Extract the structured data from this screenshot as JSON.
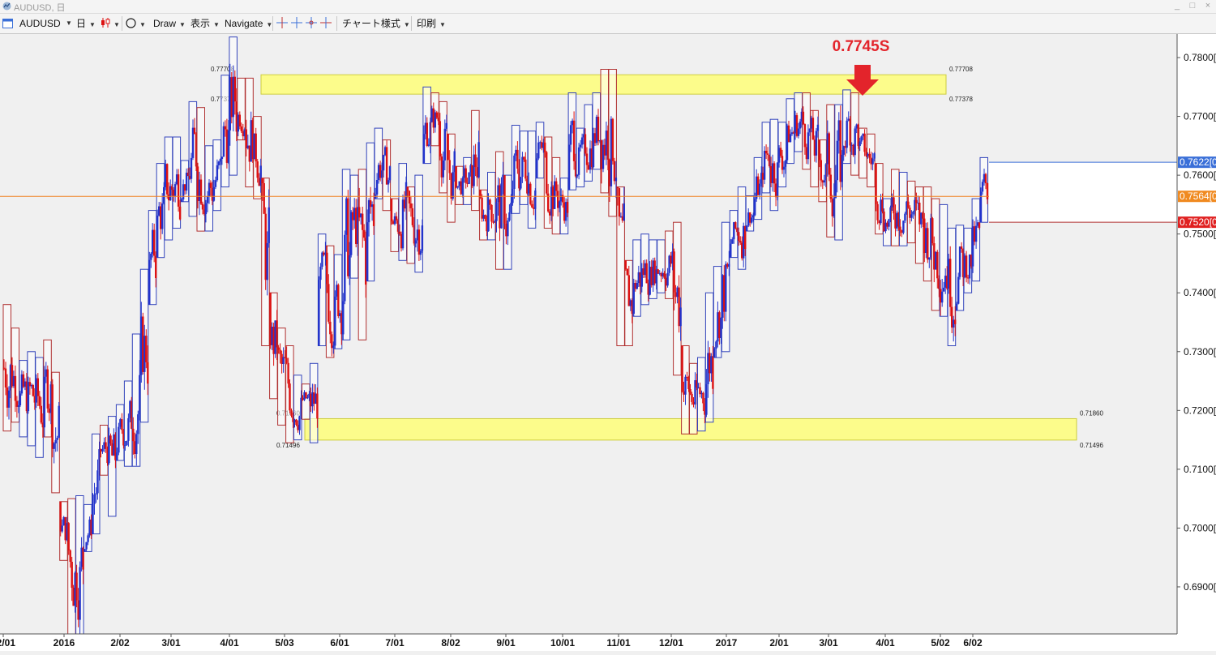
{
  "window": {
    "title": "AUDUSD, 日",
    "minimize": "_",
    "maximize": "□",
    "close": "×"
  },
  "toolbar": {
    "symbol": "AUDUSD",
    "timeframe": "日",
    "draw": "Draw",
    "view": "表示",
    "navigate": "Navigate",
    "chart_style": "チャート様式",
    "print": "印刷"
  },
  "colors": {
    "bull": "#2233cc",
    "bear": "#dd1111",
    "box_up": "#3344bb",
    "box_down": "#b03030",
    "zone_fill": "#ffff7a",
    "zone_border": "#c8c820",
    "current_line": "#f08020",
    "annotation": "#e3242b",
    "grid_bg": "#f0f0f0"
  },
  "annotation": {
    "text": "0.7745S",
    "arrow": "down-arrow-icon"
  },
  "zones": [
    {
      "name": "resistance",
      "upper": 0.77708,
      "lower": 0.77378,
      "upper_label": "0.77708",
      "lower_label": "0.77378"
    },
    {
      "name": "support",
      "upper": 0.7186,
      "lower": 0.71496,
      "upper_label": "0.71860",
      "lower_label": "0.71496"
    }
  ],
  "price_tags": [
    {
      "value": 0.7622,
      "text": "0.7622[0]",
      "color": "#3a6fd8"
    },
    {
      "value": 0.7564,
      "text": "0.7564[0]",
      "color": "#f08a20"
    },
    {
      "value": 0.752,
      "text": "0.7520[0]",
      "color": "#e02020"
    }
  ],
  "chart_data": {
    "type": "candlestick",
    "symbol": "AUDUSD",
    "timeframe": "日",
    "y_axis": {
      "min": 0.682,
      "max": 0.784,
      "ticks": [
        "0.7800[0]",
        "0.7700[0]",
        "0.7600[0]",
        "0.7500[0]",
        "0.7400[0]",
        "0.7300[0]",
        "0.7200[0]",
        "0.7100[0]",
        "0.7000[0]",
        "0.6900[0]"
      ],
      "tick_values": [
        0.78,
        0.77,
        0.76,
        0.75,
        0.74,
        0.73,
        0.72,
        0.71,
        0.7,
        0.69
      ]
    },
    "x_axis": {
      "labels": [
        "12/01",
        "2016",
        "2/02",
        "3/01",
        "4/01",
        "5/03",
        "6/01",
        "7/01",
        "8/02",
        "9/01",
        "10/01",
        "11/01",
        "12/01",
        "2017",
        "2/01",
        "3/01",
        "4/01",
        "5/02",
        "6/02"
      ]
    },
    "current_price": 0.7564,
    "weekly_boxes": [
      [
        0.738,
        0.7165
      ],
      [
        0.734,
        0.718
      ],
      [
        0.7285,
        0.7155
      ],
      [
        0.73,
        0.714
      ],
      [
        0.729,
        0.712
      ],
      [
        0.732,
        0.7155
      ],
      [
        0.7265,
        0.706
      ],
      [
        0.7045,
        0.6945
      ],
      [
        0.705,
        0.6815
      ],
      [
        0.7055,
        0.682
      ],
      [
        0.704,
        0.696
      ],
      [
        0.716,
        0.699
      ],
      [
        0.7175,
        0.709
      ],
      [
        0.719,
        0.702
      ],
      [
        0.721,
        0.7115
      ],
      [
        0.725,
        0.7105
      ],
      [
        0.733,
        0.7105
      ],
      [
        0.744,
        0.718
      ],
      [
        0.754,
        0.738
      ],
      [
        0.762,
        0.746
      ],
      [
        0.7665,
        0.749
      ],
      [
        0.7665,
        0.751
      ],
      [
        0.7625,
        0.7555
      ],
      [
        0.7725,
        0.753
      ],
      [
        0.7715,
        0.7505
      ],
      [
        0.765,
        0.7505
      ],
      [
        0.766,
        0.754
      ],
      [
        0.777,
        0.758
      ],
      [
        0.7835,
        0.76
      ],
      [
        0.7765,
        0.766
      ],
      [
        0.7765,
        0.758
      ],
      [
        0.77,
        0.756
      ],
      [
        0.7595,
        0.731
      ],
      [
        0.74,
        0.722
      ],
      [
        0.734,
        0.7175
      ],
      [
        0.731,
        0.7145
      ],
      [
        0.726,
        0.715
      ],
      [
        0.7245,
        0.7185
      ],
      [
        0.728,
        0.7145
      ],
      [
        0.75,
        0.731
      ],
      [
        0.748,
        0.729
      ],
      [
        0.7465,
        0.7305
      ],
      [
        0.761,
        0.732
      ],
      [
        0.76,
        0.7425
      ],
      [
        0.761,
        0.732
      ],
      [
        0.7655,
        0.742
      ],
      [
        0.768,
        0.756
      ],
      [
        0.766,
        0.754
      ],
      [
        0.756,
        0.747
      ],
      [
        0.762,
        0.7455
      ],
      [
        0.758,
        0.745
      ],
      [
        0.76,
        0.7435
      ],
      [
        0.775,
        0.762
      ],
      [
        0.774,
        0.765
      ],
      [
        0.7725,
        0.757
      ],
      [
        0.767,
        0.752
      ],
      [
        0.7615,
        0.755
      ],
      [
        0.763,
        0.755
      ],
      [
        0.771,
        0.754
      ],
      [
        0.7575,
        0.749
      ],
      [
        0.7605,
        0.749
      ],
      [
        0.764,
        0.744
      ],
      [
        0.76,
        0.744
      ],
      [
        0.7685,
        0.7535
      ],
      [
        0.7675,
        0.755
      ],
      [
        0.7675,
        0.751
      ],
      [
        0.769,
        0.7595
      ],
      [
        0.7665,
        0.751
      ],
      [
        0.763,
        0.75
      ],
      [
        0.7595,
        0.75
      ],
      [
        0.774,
        0.7575
      ],
      [
        0.768,
        0.758
      ],
      [
        0.772,
        0.759
      ],
      [
        0.774,
        0.761
      ],
      [
        0.778,
        0.757
      ],
      [
        0.778,
        0.753
      ],
      [
        0.758,
        0.731
      ],
      [
        0.7455,
        0.731
      ],
      [
        0.749,
        0.736
      ],
      [
        0.75,
        0.738
      ],
      [
        0.749,
        0.739
      ],
      [
        0.749,
        0.74
      ],
      [
        0.7505,
        0.739
      ],
      [
        0.752,
        0.726
      ],
      [
        0.731,
        0.716
      ],
      [
        0.728,
        0.716
      ],
      [
        0.729,
        0.7165
      ],
      [
        0.74,
        0.718
      ],
      [
        0.7445,
        0.729
      ],
      [
        0.752,
        0.73
      ],
      [
        0.754,
        0.746
      ],
      [
        0.758,
        0.744
      ],
      [
        0.7565,
        0.7505
      ],
      [
        0.763,
        0.7525
      ],
      [
        0.769,
        0.757
      ],
      [
        0.7695,
        0.754
      ],
      [
        0.769,
        0.758
      ],
      [
        0.773,
        0.762
      ],
      [
        0.774,
        0.764
      ],
      [
        0.774,
        0.761
      ],
      [
        0.771,
        0.758
      ],
      [
        0.766,
        0.7555
      ],
      [
        0.772,
        0.7495
      ],
      [
        0.772,
        0.749
      ],
      [
        0.7745,
        0.762
      ],
      [
        0.774,
        0.76
      ],
      [
        0.768,
        0.7595
      ],
      [
        0.767,
        0.758
      ],
      [
        0.762,
        0.75
      ],
      [
        0.756,
        0.748
      ],
      [
        0.761,
        0.748
      ],
      [
        0.7605,
        0.748
      ],
      [
        0.759,
        0.7485
      ],
      [
        0.758,
        0.745
      ],
      [
        0.758,
        0.742
      ],
      [
        0.756,
        0.737
      ],
      [
        0.755,
        0.736
      ],
      [
        0.751,
        0.731
      ],
      [
        0.7515,
        0.737
      ],
      [
        0.751,
        0.74
      ],
      [
        0.756,
        0.742
      ],
      [
        0.763,
        0.752
      ]
    ]
  }
}
